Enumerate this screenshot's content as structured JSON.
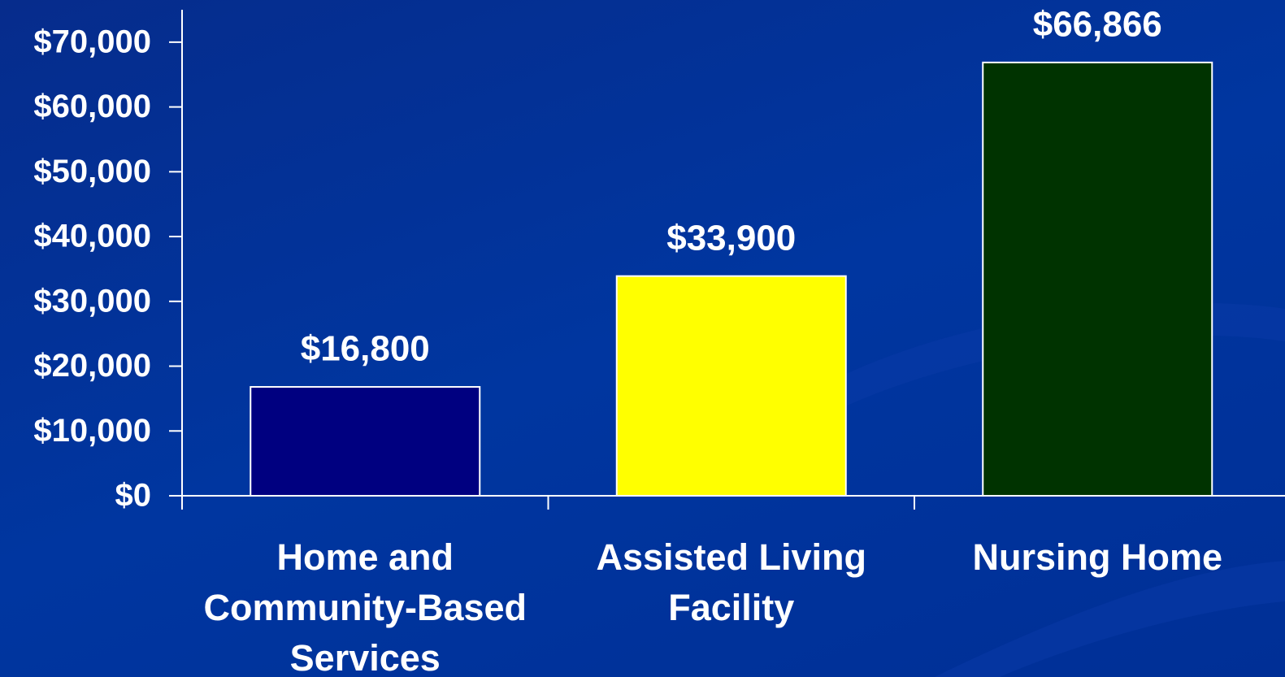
{
  "chart_data": {
    "type": "bar",
    "categories": [
      "Home and Community-Based Services",
      "Assisted Living Facility",
      "Nursing Home"
    ],
    "values": [
      16800,
      33900,
      66866
    ],
    "value_labels": [
      "$16,800",
      "$33,900",
      "$66,866"
    ],
    "colors": [
      "#000080",
      "#ffff00",
      "#003300"
    ],
    "ylim": [
      0,
      75000
    ],
    "yticks": [
      {
        "value": 0,
        "label": "$0"
      },
      {
        "value": 10000,
        "label": "$10,000"
      },
      {
        "value": 20000,
        "label": "$20,000"
      },
      {
        "value": 30000,
        "label": "$30,000"
      },
      {
        "value": 40000,
        "label": "$40,000"
      },
      {
        "value": 50000,
        "label": "$50,000"
      },
      {
        "value": 60000,
        "label": "$60,000"
      },
      {
        "value": 70000,
        "label": "$70,000"
      }
    ]
  }
}
